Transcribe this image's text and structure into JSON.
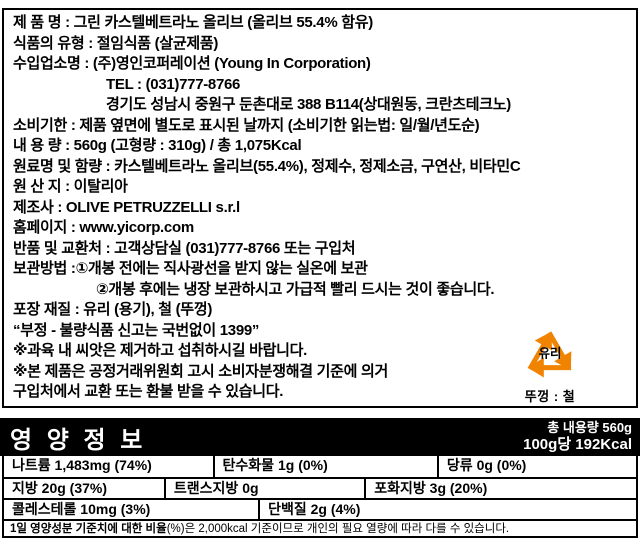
{
  "label": {
    "info_lines": [
      {
        "text": "제 품 명 : 그린 카스텔베트라노 올리브 (올리브 55.4% 함유)",
        "indent": 0
      },
      {
        "text": "식품의 유형 : 절임식품 (살균제품)",
        "indent": 0
      },
      {
        "text": "수입업소명 : (주)영인코퍼레이션 (Young In Corporation)",
        "indent": 0
      },
      {
        "text": "TEL : (031)777-8766",
        "indent": 1
      },
      {
        "text": "경기도 성남시 중원구 둔촌대로 388 B114(상대원동, 크란츠테크노)",
        "indent": 1
      },
      {
        "text": "소비기한 : 제품 옆면에 별도로 표시된 날까지 (소비기한 읽는법: 일/월/년도순)",
        "indent": 0
      },
      {
        "text": "내 용 량 : 560g (고형량 : 310g) / 총 1,075Kcal",
        "indent": 0
      },
      {
        "text": "원료명 및 함량 : 카스텔베트라노 올리브(55.4%), 정제수, 정제소금, 구연산, 비타민C",
        "indent": 0
      },
      {
        "text": "원 산 지 : 이탈리아",
        "indent": 0
      },
      {
        "text": "제조사 : OLIVE PETRUZZELLI s.r.l",
        "indent": 0
      },
      {
        "text": "홈페이지 : www.yicorp.com",
        "indent": 0
      },
      {
        "text": "반품 및 교환처 : 고객상담실 (031)777-8766 또는 구입처",
        "indent": 0
      },
      {
        "text": "보관방법 :①개봉 전에는 직사광선을 받지 않는 실온에 보관",
        "indent": 0
      },
      {
        "text": "②개봉 후에는 냉장 보관하시고 가급적 빨리 드시는 것이 좋습니다.",
        "indent": 2
      },
      {
        "text": "포장 재질 : 유리 (용기), 철 (뚜껑)",
        "indent": 0
      },
      {
        "text": "“부정 - 불량식품 신고는 국번없이 1399”",
        "indent": 0
      },
      {
        "text": "※과육 내 씨앗은 제거하고 섭취하시길 바랍니다.",
        "indent": 0
      },
      {
        "text": "※본 제품은 공정거래위원회 고시 소비자분쟁해결 기준에 의거",
        "indent": 0
      },
      {
        "text": "구입처에서 교환 또는 환불 받을 수 있습니다.",
        "indent": 0
      }
    ],
    "recycle": {
      "material": "유리",
      "lid": "뚜껑 : 철"
    }
  },
  "nutrition": {
    "title": "영 양 정 보",
    "total_content": "총 내용량 560g",
    "per_100g": "100g당 192Kcal",
    "rows": [
      [
        {
          "label": "나트륨",
          "value": "1,483mg (74%)"
        },
        {
          "label": "탄수화물",
          "value": "1g (0%)"
        },
        {
          "label": "당류",
          "value": "0g (0%)"
        }
      ],
      [
        {
          "label": "지방",
          "value": "20g (37%)"
        },
        {
          "label": "트랜스지방",
          "value": "0g"
        },
        {
          "label": "포화지방",
          "value": "3g (20%)"
        }
      ],
      [
        {
          "label": "콜레스테롤",
          "value": "10mg (3%)"
        },
        {
          "label": "단백질",
          "value": "2g (4%)"
        }
      ]
    ],
    "footnote_bold": "1일 영양성분 기준치에 대한 비율",
    "footnote_rest": "(%)은 2,000kcal 기준이므로 개인의 필요 열량에 따라 다를 수 있습니다."
  },
  "colors": {
    "accent_orange": "#F08300",
    "banner_bg": "#000000",
    "banner_text": "#FFFFFF"
  }
}
